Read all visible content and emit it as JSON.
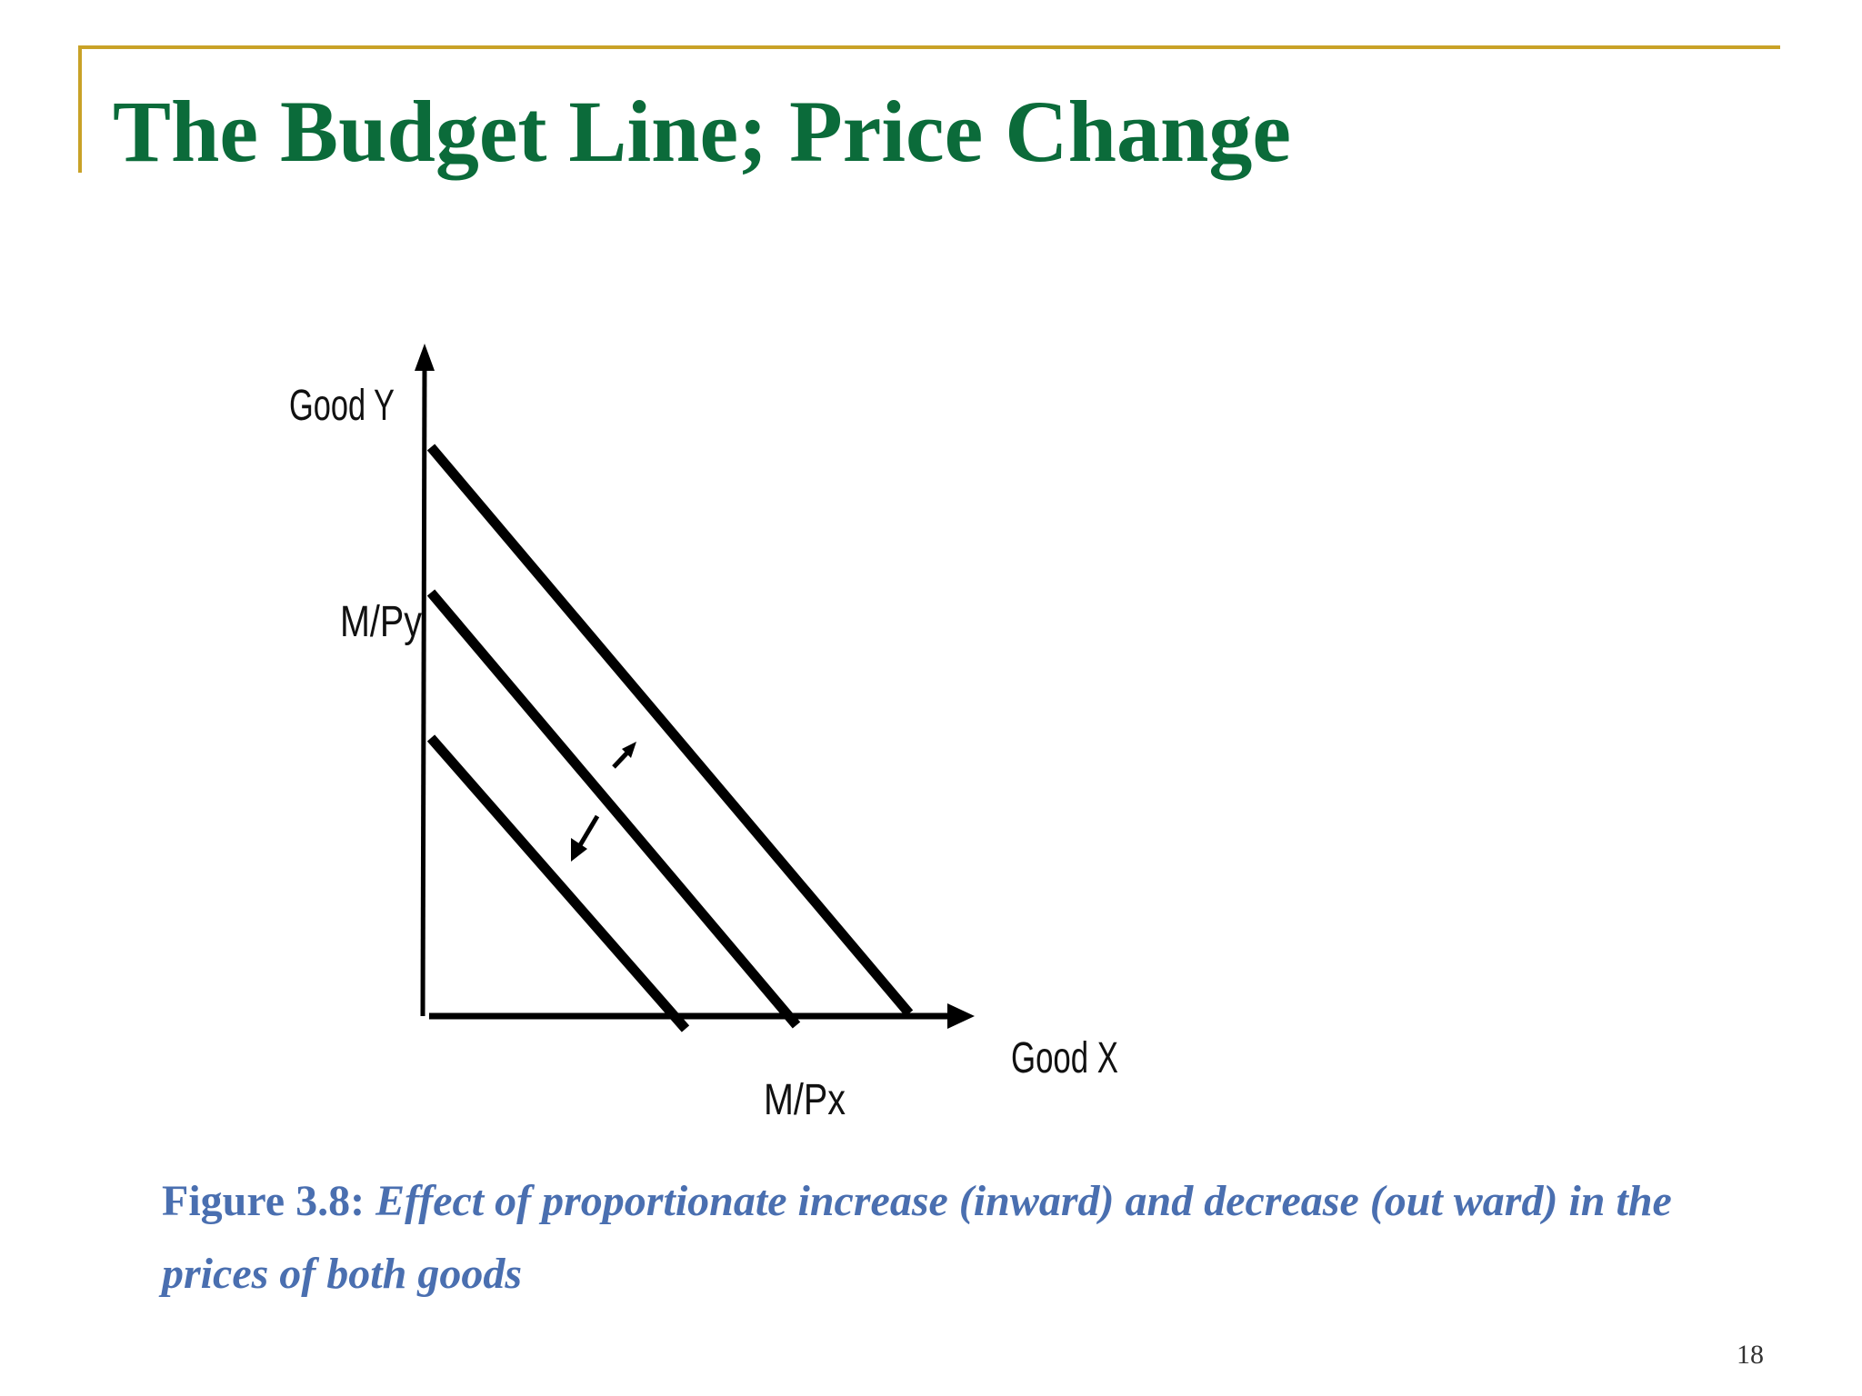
{
  "slide": {
    "title": "The Budget Line; Price Change",
    "page_number": "18"
  },
  "diagram": {
    "y_axis_label": "Good Y",
    "x_axis_label": "Good X",
    "y_intercept_label": "M/Py",
    "x_intercept_label": "M/Px",
    "budget_lines": [
      "outer",
      "original",
      "inner"
    ],
    "shift_arrows": [
      "outward",
      "inward"
    ],
    "line_color": "#000000"
  },
  "caption": {
    "prefix": "Figure 3.8:",
    "text": " Effect of proportionate increase (inward) and decrease (out ward) in the prices of both goods"
  },
  "colors": {
    "title": "#0B6B3A",
    "accent_rule": "#C9A227",
    "caption": "#4A6FB0"
  }
}
